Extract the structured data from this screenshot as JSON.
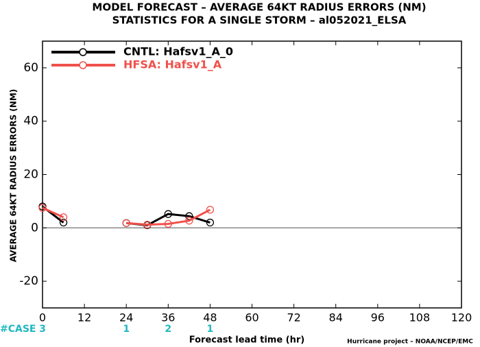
{
  "chart_data": {
    "type": "line",
    "title": "MODEL FORECAST – AVERAGE 64KT RADIUS ERRORS (NM)",
    "subtitle": "STATISTICS FOR A SINGLE STORM – al052021_ELSA",
    "x_label": "Forecast lead time (hr)",
    "y_label": "AVERAGE 64KT RADIUS ERRORS (NM)",
    "footer": "Hurricane project – NOAA/NCEP/EMC",
    "x": [
      0,
      6,
      12,
      18,
      24,
      30,
      36,
      42,
      48
    ],
    "series": [
      {
        "name": "CNTL: Hafsv1_A_0",
        "color": "#000000",
        "values": [
          8,
          2,
          null,
          null,
          1.8,
          1,
          5.2,
          4.4,
          2
        ]
      },
      {
        "name": "HFSA: Hafsv1_A",
        "color": "#f0504a",
        "values": [
          7.5,
          4,
          null,
          null,
          1.8,
          1.2,
          1.5,
          2.7,
          6.8
        ]
      }
    ],
    "xlim": [
      0,
      120
    ],
    "xticks": [
      0,
      12,
      24,
      36,
      48,
      60,
      72,
      84,
      96,
      108,
      120
    ],
    "ylim": [
      -30,
      70
    ],
    "yticks": [
      -20,
      0,
      20,
      40,
      60
    ],
    "reference_line": 0,
    "legend": "top-left",
    "cases": {
      "label": "#CASE",
      "color": "#20b8c0",
      "x": [
        0,
        24,
        36,
        48
      ],
      "values": [
        3,
        1,
        2,
        1
      ]
    }
  }
}
